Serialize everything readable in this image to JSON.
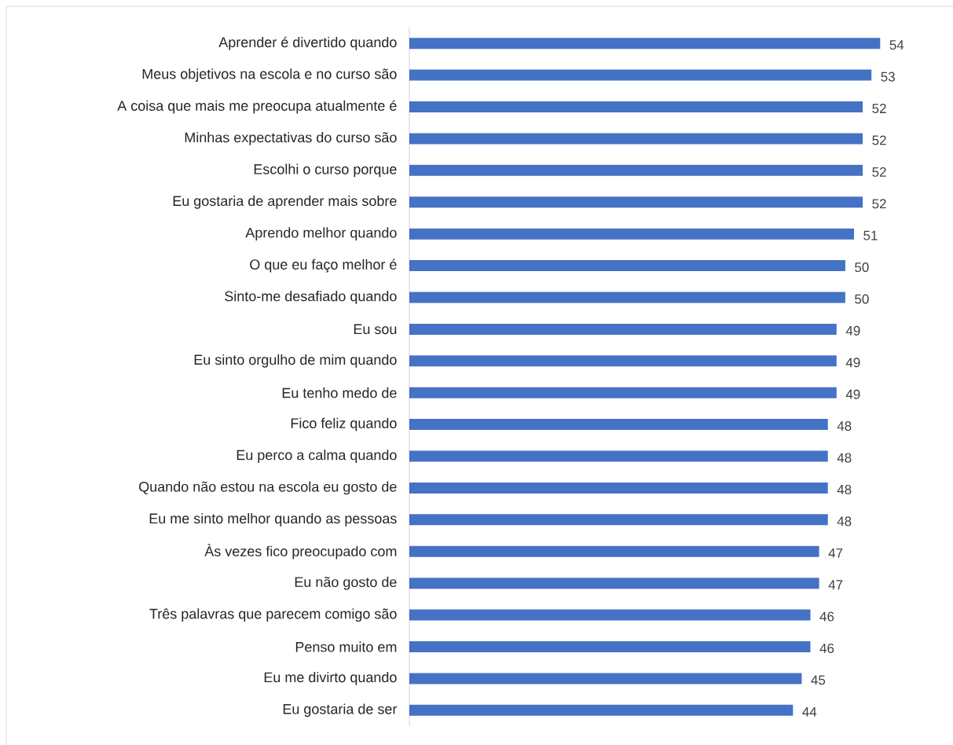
{
  "chart_data": {
    "type": "bar",
    "orientation": "horizontal",
    "categories": [
      "Aprender é divertido quando",
      "Meus objetivos na escola e no curso são",
      "A coisa que mais me preocupa atualmente é",
      "Minhas expectativas do curso são",
      "Escolhi o curso porque",
      "Eu gostaria de aprender mais sobre",
      "Aprendo melhor quando",
      "O que eu faço melhor é",
      "Sinto-me desafiado quando",
      "Eu sou",
      "Eu sinto orgulho de mim quando",
      "Eu tenho medo de",
      "Fico feliz quando",
      "Eu perco a calma quando",
      "Quando não estou na escola eu gosto de",
      "Eu me sinto melhor quando as pessoas",
      "Às vezes fico preocupado com",
      "Eu não gosto de",
      "Três palavras que parecem comigo são",
      "Penso muito em",
      "Eu me divirto quando",
      "Eu gostaria de ser"
    ],
    "values": [
      54,
      53,
      52,
      52,
      52,
      52,
      51,
      50,
      50,
      49,
      49,
      49,
      48,
      48,
      48,
      48,
      47,
      47,
      46,
      46,
      45,
      44
    ],
    "color": "#4472c4",
    "data_labels": true
  }
}
